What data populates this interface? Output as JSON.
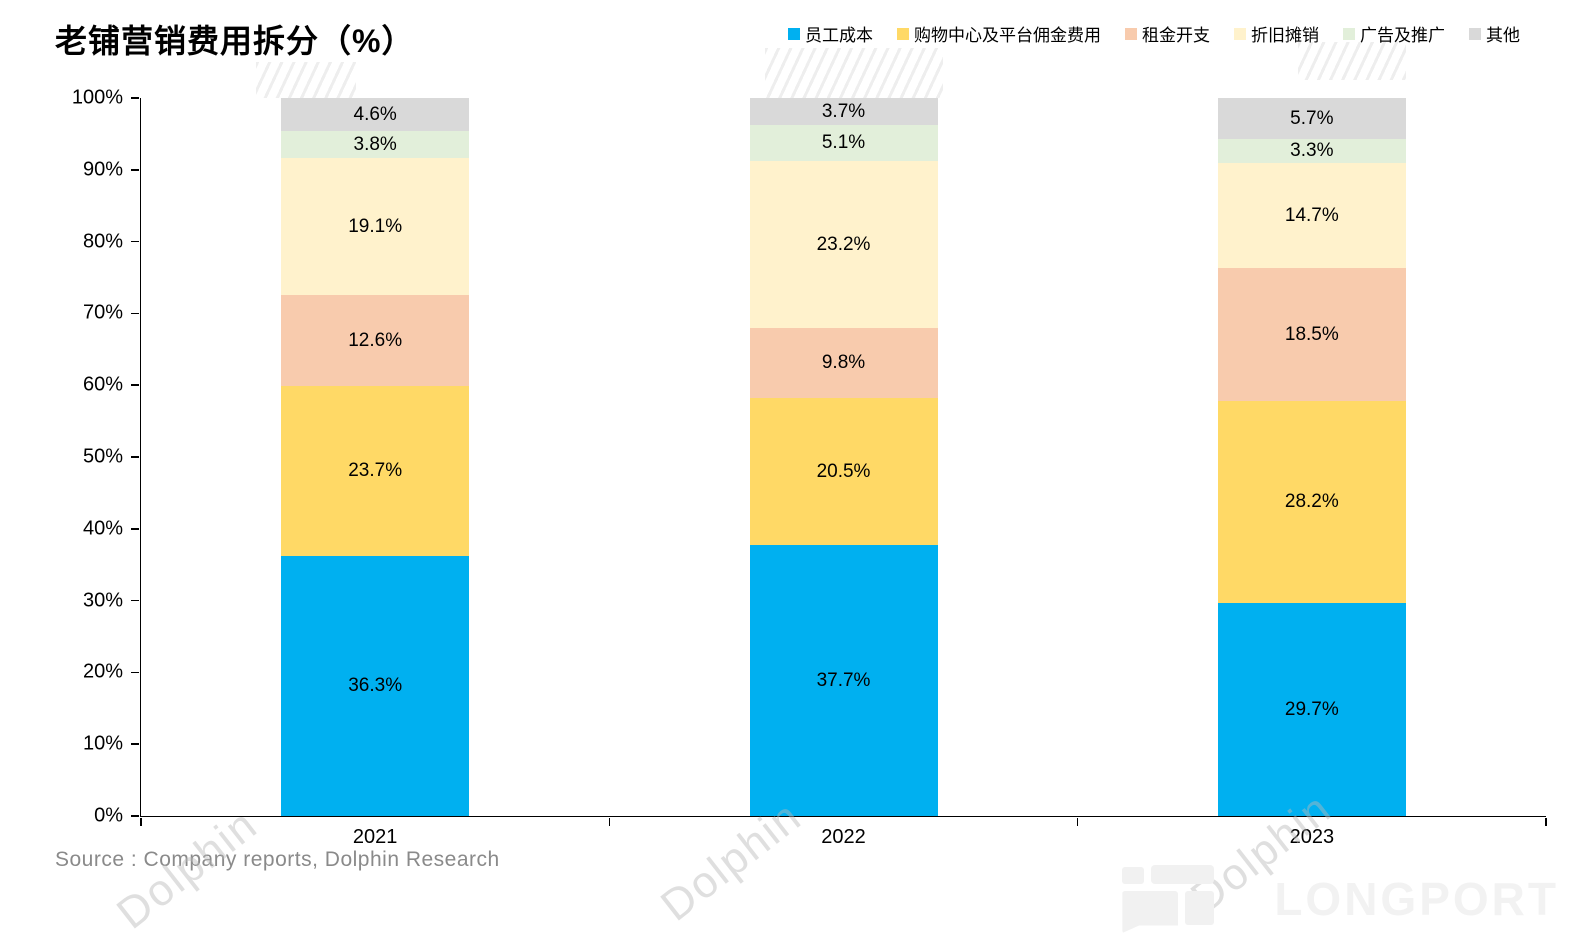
{
  "title": "老铺营销费用拆分（%）",
  "source": "Source : Company reports, Dolphin Research",
  "watermarks": {
    "dolphin_text": "Dolphin",
    "longport_text": "LONGPORT"
  },
  "chart_data": {
    "type": "bar",
    "stacked": true,
    "title": "老铺营销费用拆分（%）",
    "categories": [
      "2021",
      "2022",
      "2023"
    ],
    "series": [
      {
        "name": "员工成本",
        "color": "#00B0F0",
        "values": [
          36.3,
          37.7,
          29.7
        ]
      },
      {
        "name": "购物中心及平台佣金费用",
        "color": "#FFD966",
        "values": [
          23.7,
          20.5,
          28.2
        ]
      },
      {
        "name": "租金开支",
        "color": "#F8CBAD",
        "values": [
          12.6,
          9.8,
          18.5
        ]
      },
      {
        "name": "折旧摊销",
        "color": "#FFF2CC",
        "values": [
          19.1,
          23.2,
          14.7
        ]
      },
      {
        "name": "广告及推广",
        "color": "#E2EFDA",
        "values": [
          3.8,
          5.1,
          3.3
        ]
      },
      {
        "name": "其他",
        "color": "#D9D9D9",
        "values": [
          4.6,
          3.7,
          5.7
        ]
      }
    ],
    "xlabel": "",
    "ylabel": "",
    "ylim": [
      0,
      100
    ],
    "yticks": [
      "0%",
      "10%",
      "20%",
      "30%",
      "40%",
      "50%",
      "60%",
      "70%",
      "80%",
      "90%",
      "100%"
    ],
    "grid": false,
    "legend_position": "top-right",
    "data_labels": "percent-one-decimal"
  }
}
